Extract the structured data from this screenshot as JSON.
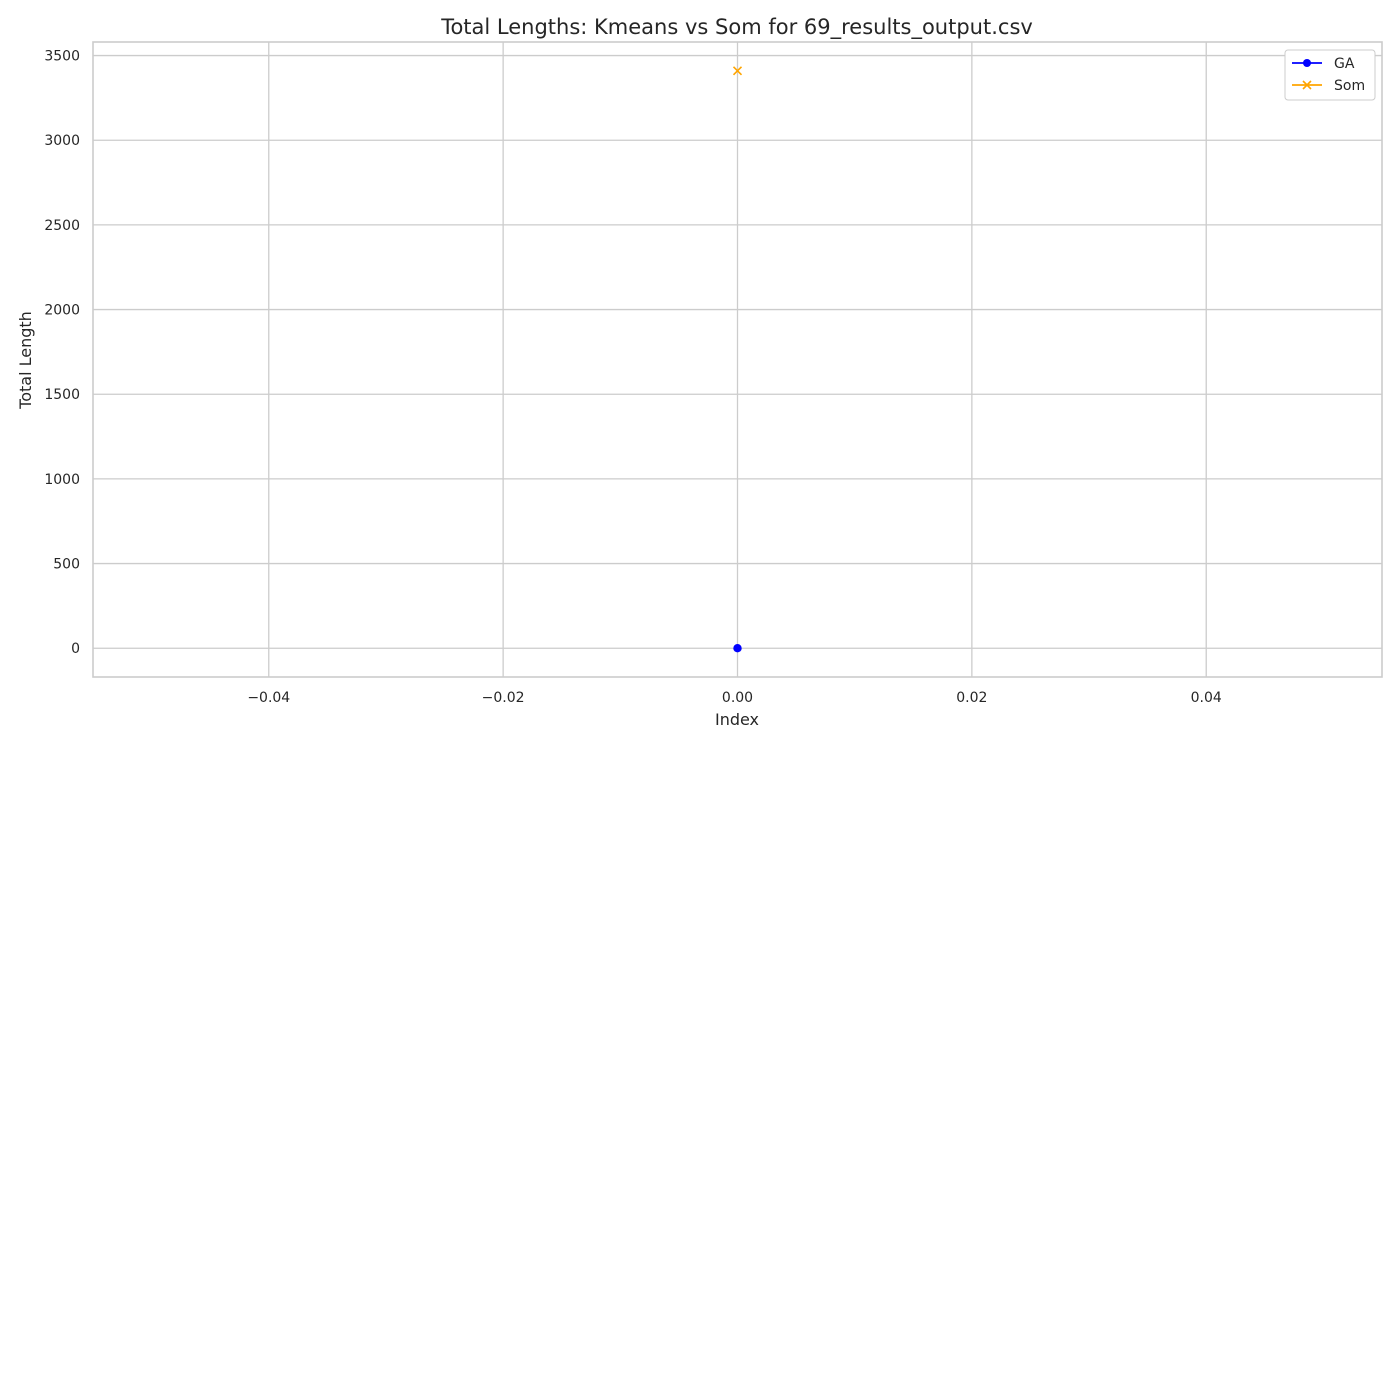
{
  "chart_data": {
    "type": "line",
    "title": "Total Lengths: Kmeans vs Som  for 69_results_output.csv",
    "xlabel": "Index",
    "ylabel": "Total Length",
    "xlim": [
      -0.055,
      0.055
    ],
    "ylim": [
      -170,
      3580
    ],
    "xticks": [
      -0.04,
      -0.02,
      0.0,
      0.02,
      0.04
    ],
    "xtick_labels": [
      "−0.04",
      "−0.02",
      "0.00",
      "0.02",
      "0.04"
    ],
    "yticks": [
      0,
      500,
      1000,
      1500,
      2000,
      2500,
      3000,
      3500
    ],
    "ytick_labels": [
      "0",
      "500",
      "1000",
      "1500",
      "2000",
      "2500",
      "3000",
      "3500"
    ],
    "grid": true,
    "legend_position": "top-right",
    "series": [
      {
        "name": "GA",
        "marker": "circle",
        "color": "#0000ff",
        "x": [
          0
        ],
        "y": [
          0
        ]
      },
      {
        "name": "Som",
        "marker": "x",
        "color": "#ffa500",
        "x": [
          0
        ],
        "y": [
          3410
        ]
      }
    ]
  }
}
